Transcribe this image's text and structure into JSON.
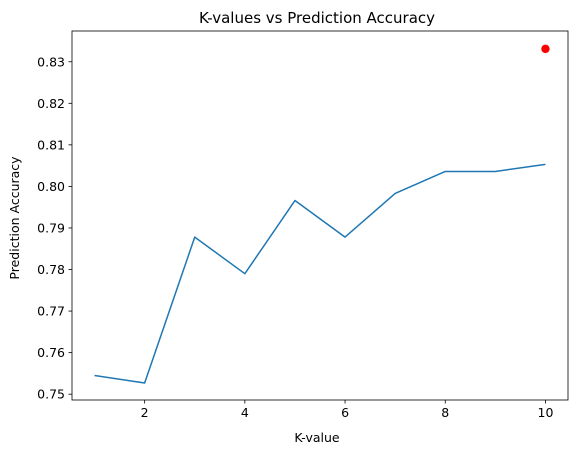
{
  "chart_data": {
    "type": "line",
    "title": "K-values vs Prediction Accuracy",
    "xlabel": "K-value",
    "ylabel": "Prediction Accuracy",
    "xlim": [
      0.55,
      10.45
    ],
    "ylim": [
      0.7486,
      0.8374
    ],
    "xticks": [
      2,
      4,
      6,
      8,
      10
    ],
    "xtick_labels": [
      "2",
      "4",
      "6",
      "8",
      "10"
    ],
    "yticks": [
      0.75,
      0.76,
      0.77,
      0.78,
      0.79,
      0.8,
      0.81,
      0.82,
      0.83
    ],
    "ytick_labels": [
      "0.75",
      "0.76",
      "0.77",
      "0.78",
      "0.79",
      "0.80",
      "0.81",
      "0.82",
      "0.83"
    ],
    "grid": false,
    "series": [
      {
        "type": "line",
        "color": "#1f77b4",
        "x": [
          1,
          2,
          3,
          4,
          5,
          6,
          7,
          8,
          9,
          10
        ],
        "y": [
          0.7545,
          0.7527,
          0.7878,
          0.779,
          0.7966,
          0.7878,
          0.7983,
          0.8036,
          0.8036,
          0.8053
        ]
      },
      {
        "type": "scatter",
        "color": "#ff0000",
        "x": [
          10
        ],
        "y": [
          0.8331
        ]
      }
    ]
  }
}
